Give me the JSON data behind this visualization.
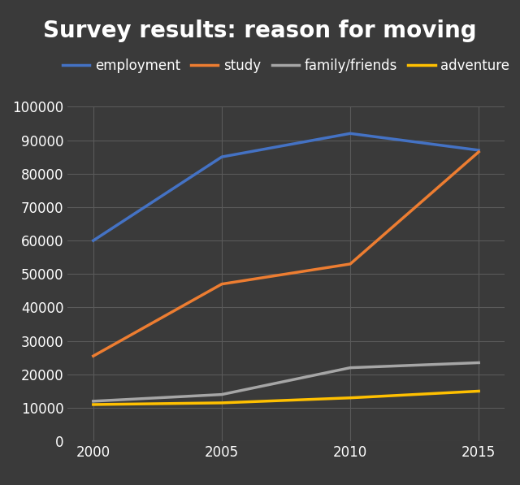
{
  "title": "Survey results: reason for moving",
  "title_fontsize": 20,
  "title_color": "white",
  "background_color": "#3a3a3a",
  "plot_bg_color": "#3a3a3a",
  "grid_color": "#5a5a5a",
  "years": [
    2000,
    2005,
    2010,
    2015
  ],
  "series": [
    {
      "label": "employment",
      "color": "#4472c4",
      "values": [
        60000,
        85000,
        92000,
        87000
      ]
    },
    {
      "label": "study",
      "color": "#ed7d31",
      "values": [
        25500,
        47000,
        53000,
        86500
      ]
    },
    {
      "label": "family/friends",
      "color": "#a6a6a6",
      "values": [
        12000,
        14000,
        22000,
        23500
      ]
    },
    {
      "label": "adventure",
      "color": "#ffc000",
      "values": [
        11000,
        11500,
        13000,
        15000
      ]
    }
  ],
  "ylim": [
    0,
    100000
  ],
  "yticks": [
    0,
    10000,
    20000,
    30000,
    40000,
    50000,
    60000,
    70000,
    80000,
    90000,
    100000
  ],
  "xticks": [
    2000,
    2005,
    2010,
    2015
  ],
  "tick_color": "white",
  "tick_fontsize": 12,
  "legend_fontsize": 12,
  "legend_text_color": "white",
  "line_width": 2.5
}
